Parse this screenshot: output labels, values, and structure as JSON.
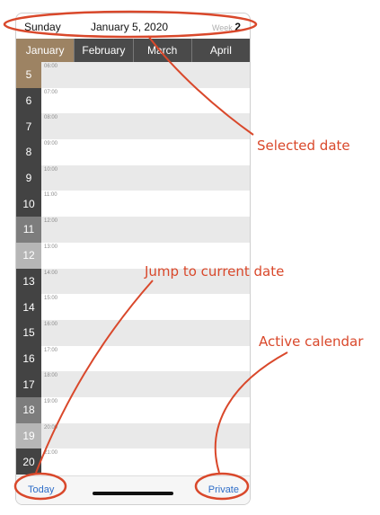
{
  "header": {
    "day": "Sunday",
    "date": "January 5, 2020",
    "week_label": "Week",
    "week_number": "2"
  },
  "months": [
    {
      "label": "January",
      "active": true
    },
    {
      "label": "February",
      "active": false
    },
    {
      "label": "March",
      "active": false
    },
    {
      "label": "April",
      "active": false
    }
  ],
  "rows": [
    {
      "day": "5",
      "time": "06:00",
      "style": "selected"
    },
    {
      "day": "6",
      "time": "07:00",
      "style": "dark"
    },
    {
      "day": "7",
      "time": "08:00",
      "style": "dark"
    },
    {
      "day": "8",
      "time": "09:00",
      "style": "dark"
    },
    {
      "day": "9",
      "time": "10:00",
      "style": "dark"
    },
    {
      "day": "10",
      "time": "11:00",
      "style": "dark"
    },
    {
      "day": "11",
      "time": "12:00",
      "style": "mid"
    },
    {
      "day": "12",
      "time": "13:00",
      "style": "light"
    },
    {
      "day": "13",
      "time": "14:00",
      "style": "dark"
    },
    {
      "day": "14",
      "time": "15:00",
      "style": "dark"
    },
    {
      "day": "15",
      "time": "16:00",
      "style": "dark"
    },
    {
      "day": "16",
      "time": "17:00",
      "style": "dark"
    },
    {
      "day": "17",
      "time": "18:00",
      "style": "dark"
    },
    {
      "day": "18",
      "time": "19:00",
      "style": "mid"
    },
    {
      "day": "19",
      "time": "20:00",
      "style": "light"
    },
    {
      "day": "20",
      "time": "21:00",
      "style": "dark"
    }
  ],
  "toolbar": {
    "today_label": "Today",
    "calendar_label": "Private"
  },
  "annotations": {
    "selected_date": "Selected date",
    "jump_current": "Jump to current date",
    "active_calendar": "Active calendar"
  },
  "colors": {
    "accent": "#9d8363",
    "dark_cell": "#434343",
    "annotation": "#d9482b",
    "link": "#2f6ec8"
  }
}
